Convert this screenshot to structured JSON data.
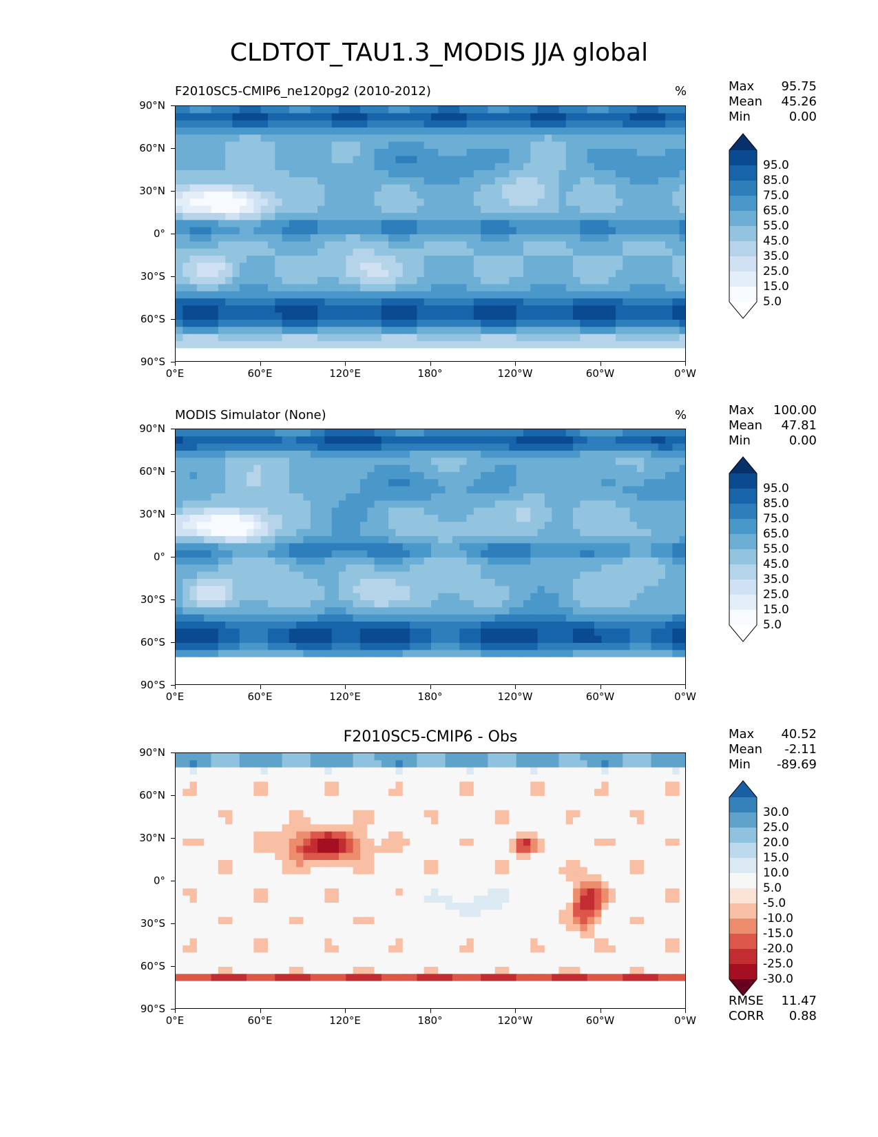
{
  "title": "CLDTOT_TAU1.3_MODIS JJA global",
  "panels": [
    {
      "title": "F2010SC5-CMIP6_ne120pg2 (2010-2012)",
      "units": "%",
      "stats": [
        {
          "label": "Max",
          "value": "95.75"
        },
        {
          "label": "Mean",
          "value": "45.26"
        },
        {
          "label": "Min",
          "value": "0.00"
        }
      ],
      "colorbar_labels": [
        "95.0",
        "85.0",
        "75.0",
        "65.0",
        "55.0",
        "45.0",
        "35.0",
        "25.0",
        "15.0",
        "5.0"
      ]
    },
    {
      "title": "MODIS Simulator (None)",
      "units": "%",
      "stats": [
        {
          "label": "Max",
          "value": "100.00"
        },
        {
          "label": "Mean",
          "value": "47.81"
        },
        {
          "label": "Min",
          "value": "0.00"
        }
      ],
      "colorbar_labels": [
        "95.0",
        "85.0",
        "75.0",
        "65.0",
        "55.0",
        "45.0",
        "35.0",
        "25.0",
        "15.0",
        "5.0"
      ]
    },
    {
      "title": "F2010SC5-CMIP6 - Obs",
      "units": "",
      "stats": [
        {
          "label": "Max",
          "value": "40.52"
        },
        {
          "label": "Mean",
          "value": "-2.11"
        },
        {
          "label": "Min",
          "value": "-89.69"
        }
      ],
      "colorbar_labels": [
        "30.0",
        "25.0",
        "20.0",
        "15.0",
        "10.0",
        "5.0",
        "-5.0",
        "-10.0",
        "-15.0",
        "-20.0",
        "-25.0",
        "-30.0"
      ],
      "metrics": [
        {
          "label": "RMSE",
          "value": "11.47"
        },
        {
          "label": "CORR",
          "value": "0.88"
        }
      ]
    }
  ],
  "chart_data": {
    "type": "heatmap",
    "x_ticks": [
      "0°E",
      "60°E",
      "120°E",
      "180°",
      "120°W",
      "60°W",
      "0°W"
    ],
    "y_ticks": [
      "90°N",
      "60°N",
      "30°N",
      "0°",
      "30°S",
      "60°S",
      "90°S"
    ],
    "xlim": [
      0,
      360
    ],
    "ylim": [
      -90,
      90
    ],
    "colorscale_seq": [
      "#f7fbff",
      "#deebf7",
      "#c6dbef",
      "#9ecae1",
      "#6baed6",
      "#4292c6",
      "#2171b5",
      "#08519c",
      "#08306b"
    ],
    "colorscale_div": [
      "#67001f",
      "#b2182b",
      "#d6604d",
      "#f4a582",
      "#fddbc7",
      "#f7f7f7",
      "#d1e5f0",
      "#92c5de",
      "#4393c3",
      "#2166ac",
      "#053061"
    ]
  }
}
